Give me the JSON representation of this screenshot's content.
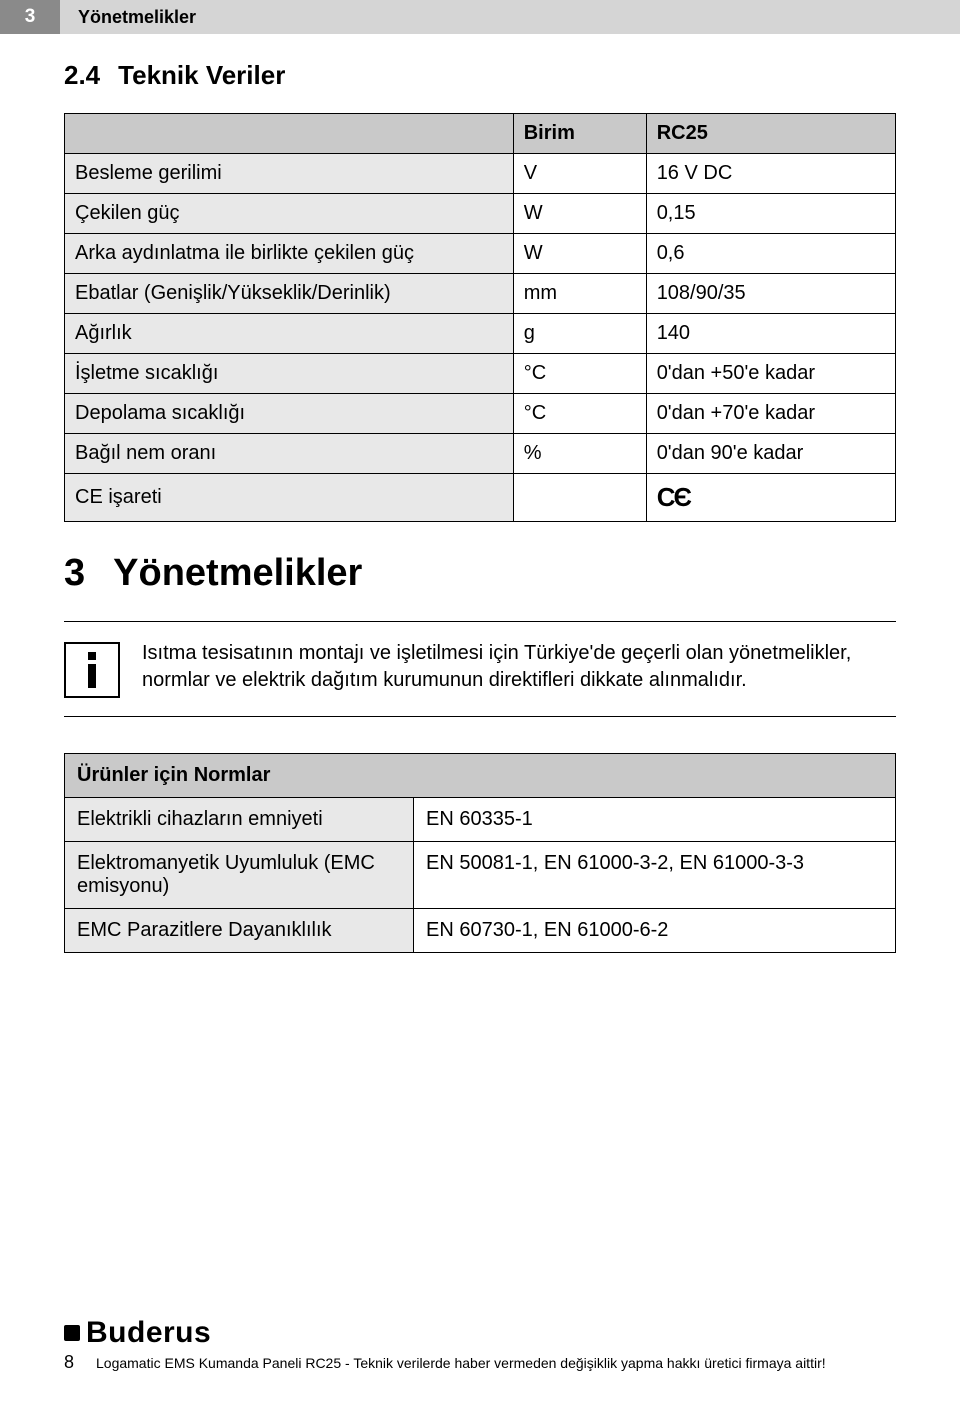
{
  "header": {
    "chapter_number": "3",
    "chapter_title": "Yönetmelikler"
  },
  "section24": {
    "number": "2.4",
    "title": "Teknik Veriler"
  },
  "tech_table": {
    "head_unit": "Birim",
    "head_model": "RC25",
    "rows": [
      {
        "label": "Besleme gerilimi",
        "unit": "V",
        "value": "16 V DC"
      },
      {
        "label": "Çekilen güç",
        "unit": "W",
        "value": "0,15"
      },
      {
        "label": "Arka aydınlatma ile birlikte çekilen güç",
        "unit": "W",
        "value": "0,6"
      },
      {
        "label": "Ebatlar (Genişlik/Yükseklik/Derinlik)",
        "unit": "mm",
        "value": "108/90/35"
      },
      {
        "label": "Ağırlık",
        "unit": "g",
        "value": "140"
      },
      {
        "label": "İşletme sıcaklığı",
        "unit": "°C",
        "value": "0'dan +50'e kadar"
      },
      {
        "label": "Depolama sıcaklığı",
        "unit": "°C",
        "value": "0'dan +70'e kadar"
      },
      {
        "label": "Bağıl nem oranı",
        "unit": "%",
        "value": "0'dan 90'e kadar"
      },
      {
        "label": "CE işareti",
        "unit": "",
        "value": "CE_MARK"
      }
    ]
  },
  "section3": {
    "number": "3",
    "title": "Yönetmelikler"
  },
  "info": {
    "text": "Isıtma tesisatının montajı ve işletilmesi için Türkiye'de geçerli olan yönetmelikler, normlar ve elektrik dağıtım kurumunun direktifleri dikkate alınmalıdır."
  },
  "norms_table": {
    "caption": "Ürünler için Normlar",
    "rows": [
      {
        "label": "Elektrikli cihazların emniyeti",
        "value": "EN 60335-1"
      },
      {
        "label": "Elektromanyetik Uyumluluk (EMC emisyonu)",
        "value": "EN 50081-1, EN 61000-3-2, EN 61000-3-3"
      },
      {
        "label": "EMC Parazitlere Dayanıklılık",
        "value": "EN 60730-1, EN 61000-6-2"
      }
    ]
  },
  "footer": {
    "brand": "Buderus",
    "page_number": "8",
    "disclaimer": "Logamatic EMS Kumanda Paneli RC25 - Teknik verilerde haber vermeden değişiklik yapma hakkı üretici firmaya aittir!"
  },
  "colors": {
    "badge_bg": "#8a8a8a",
    "titlebar_bg": "#d5d5d5",
    "thead_bg": "#c9c9c9",
    "row_label_bg": "#e8e8e8",
    "page_bg": "#ffffff",
    "text": "#000000",
    "border": "#000000"
  }
}
